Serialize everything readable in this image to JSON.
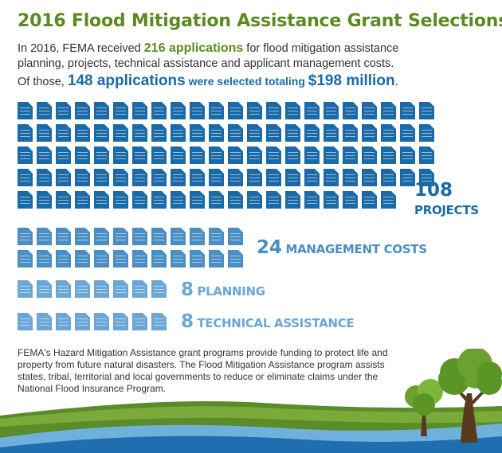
{
  "title": "2016 Flood Mitigation Assistance Grant Selections",
  "intro": {
    "l1_pre": "In 2016, FEMA received ",
    "l1_hl": "216 applications",
    "l1_post": " for flood mitigation assistance",
    "l2": "planning, projects, technical assistance and applicant management costs.",
    "l3_pre": "Of those, ",
    "l3_hl1": "148 applications",
    "l3_mid": " were selected totaling ",
    "l3_hl2": "$198 million",
    "l3_end": "."
  },
  "categories": [
    {
      "id": "projects",
      "count": 108,
      "count_label": "108",
      "label": "PROJECTS",
      "color": "#1a6aa8"
    },
    {
      "id": "management",
      "count": 24,
      "count_label": "24",
      "label": "MANAGEMENT COSTS",
      "color": "#4a8ec4"
    },
    {
      "id": "planning",
      "count": 8,
      "count_label": "8",
      "label": "PLANNING",
      "color": "#6aa6d6"
    },
    {
      "id": "technical",
      "count": 8,
      "count_label": "8",
      "label": "TECHNICAL ASSISTANCE",
      "color": "#6aa6d6"
    }
  ],
  "footer": "FEMA's Hazard Mitigation Assistance grant programs provide funding to protect life and property from future natural disasters. The Flood Mitigation Assistance program assists states, tribal, territorial and local governments to reduce or eliminate claims under the National Flood Insurance Program.",
  "icons": {
    "document": "document-icon",
    "tree": "tree-icon",
    "river": "river-graphic"
  }
}
